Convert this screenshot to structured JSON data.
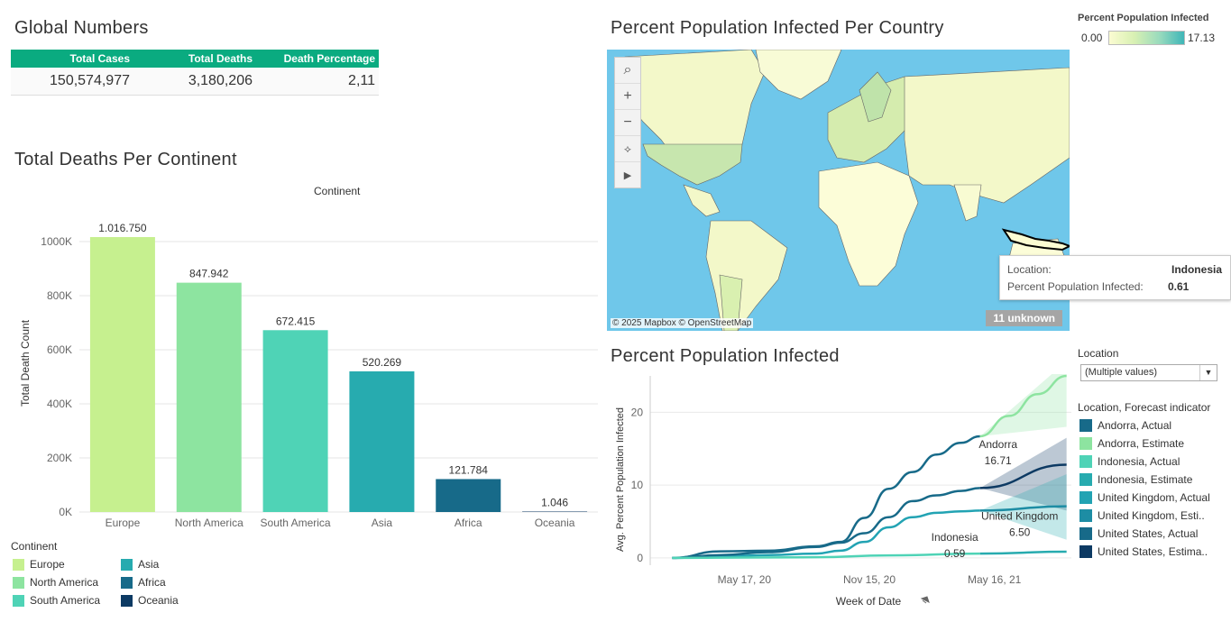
{
  "global_numbers": {
    "title": "Global Numbers",
    "headers": [
      "Total Cases",
      "Total Deaths",
      "Death Percentage"
    ],
    "values": [
      "150,574,977",
      "3,180,206",
      "2,11"
    ]
  },
  "deaths_chart": {
    "title": "Total Deaths Per Continent",
    "header": "Continent",
    "legend_title": "Continent",
    "legend": [
      {
        "label": "Europe",
        "color": "#c6f08f"
      },
      {
        "label": "North America",
        "color": "#8de4a0"
      },
      {
        "label": "South America",
        "color": "#4fd3b6"
      },
      {
        "label": "Asia",
        "color": "#27abaf"
      },
      {
        "label": "Africa",
        "color": "#176a89"
      },
      {
        "label": "Oceania",
        "color": "#0d3a63"
      }
    ]
  },
  "map": {
    "title": "Percent Population Infected Per Country",
    "legend_title": "Percent Population Infected",
    "legend_min": "0.00",
    "legend_max": "17.13",
    "credit": "© 2025 Mapbox © OpenStreetMap",
    "unknown": "11 unknown",
    "tools": [
      "search-icon",
      "zoom-in-icon",
      "zoom-out-icon",
      "pin-clear-icon",
      "play-icon"
    ],
    "tooltip": {
      "location_label": "Location:",
      "location_value": "Indonesia",
      "metric_label": "Percent Population Infected:",
      "metric_value": "0.61"
    }
  },
  "infected_chart": {
    "title": "Percent Population Infected",
    "location_label": "Location",
    "location_filter": "(Multiple values)",
    "legend_title": "Location, Forecast indicator",
    "legend": [
      {
        "label": "Andorra, Actual",
        "color": "#176a89"
      },
      {
        "label": "Andorra, Estimate",
        "color": "#8de4a0"
      },
      {
        "label": "Indonesia, Actual",
        "color": "#4fd3b6"
      },
      {
        "label": "Indonesia, Estimate",
        "color": "#27abaf"
      },
      {
        "label": "United Kingdom, Actual",
        "color": "#22a3b3"
      },
      {
        "label": "United Kingdom, Esti..",
        "color": "#1d8da4"
      },
      {
        "label": "United States, Actual",
        "color": "#176a89"
      },
      {
        "label": "United States, Estima..",
        "color": "#0d3a63"
      }
    ],
    "annotations": [
      {
        "name": "Andorra",
        "value": "16.71"
      },
      {
        "name": "Indonesia",
        "value": "0.59"
      },
      {
        "name": "United Kingdom",
        "value": "6.50"
      }
    ]
  },
  "chart_data": [
    {
      "type": "bar",
      "title": "Total Deaths Per Continent",
      "xlabel": "",
      "ylabel": "Total Death Count",
      "categories": [
        "Europe",
        "North America",
        "South America",
        "Asia",
        "Africa",
        "Oceania"
      ],
      "values": [
        1016750,
        847942,
        672415,
        520269,
        121784,
        1046
      ],
      "value_labels": [
        "1.016.750",
        "847.942",
        "672.415",
        "520.269",
        "121.784",
        "1.046"
      ],
      "colors": [
        "#c6f08f",
        "#8de4a0",
        "#4fd3b6",
        "#27abaf",
        "#176a89",
        "#0d3a63"
      ],
      "ylim": [
        0,
        1100000
      ],
      "yticks": [
        0,
        200000,
        400000,
        600000,
        800000,
        1000000
      ],
      "ytick_labels": [
        "0K",
        "200K",
        "400K",
        "600K",
        "800K",
        "1000K"
      ],
      "grid": true
    },
    {
      "type": "line",
      "title": "Percent Population Infected",
      "xlabel": "Week of Date",
      "ylabel": "Avg. Percent Population Infected",
      "x_ticks": [
        "May 17, 20",
        "Nov 15, 20",
        "May 16, 21"
      ],
      "yticks": [
        0,
        10,
        20
      ],
      "ylim": [
        -1,
        25
      ],
      "series": [
        {
          "name": "Andorra, Actual",
          "color": "#176a89",
          "x": [
            "Feb 2, 20",
            "Apr 12, 20",
            "Jun 21, 20",
            "Aug 30, 20",
            "Oct 4, 20",
            "Nov 8, 20",
            "Dec 13, 20",
            "Jan 17, 21",
            "Feb 21, 21",
            "Mar 28, 21",
            "Apr 25, 21"
          ],
          "y": [
            0,
            0.9,
            1.0,
            1.6,
            2.2,
            5.5,
            9.5,
            11.8,
            14.2,
            15.8,
            16.71
          ]
        },
        {
          "name": "Andorra, Estimate",
          "color": "#8de4a0",
          "x": [
            "Apr 25, 21",
            "Jun 6, 21",
            "Jul 18, 21",
            "Aug 29, 21"
          ],
          "y": [
            16.71,
            19.5,
            22.5,
            25
          ]
        },
        {
          "name": "United Kingdom, Actual",
          "color": "#22a3b3",
          "x": [
            "Feb 2, 20",
            "Apr 12, 20",
            "Jun 21, 20",
            "Aug 30, 20",
            "Oct 4, 20",
            "Nov 8, 20",
            "Dec 13, 20",
            "Jan 17, 21",
            "Feb 21, 21",
            "Mar 28, 21",
            "Apr 25, 21"
          ],
          "y": [
            0,
            0.2,
            0.4,
            0.6,
            1.0,
            2.2,
            4.2,
            5.6,
            6.2,
            6.4,
            6.5
          ]
        },
        {
          "name": "United Kingdom, Esti..",
          "color": "#1d8da4",
          "x": [
            "Apr 25, 21",
            "Aug 29, 21"
          ],
          "y": [
            6.5,
            7.1
          ]
        },
        {
          "name": "United States, Actual",
          "color": "#176a89",
          "x": [
            "Feb 2, 20",
            "Apr 12, 20",
            "Jun 21, 20",
            "Aug 30, 20",
            "Oct 4, 20",
            "Nov 8, 20",
            "Dec 13, 20",
            "Jan 17, 21",
            "Feb 21, 21",
            "Mar 28, 21",
            "Apr 25, 21"
          ],
          "y": [
            0,
            0.4,
            0.8,
            1.5,
            2.1,
            3.4,
            5.6,
            7.8,
            8.6,
            9.2,
            9.6
          ]
        },
        {
          "name": "United States, Estima..",
          "color": "#0d3a63",
          "x": [
            "Apr 25, 21",
            "Aug 29, 21"
          ],
          "y": [
            9.6,
            12.8
          ]
        },
        {
          "name": "Indonesia, Actual",
          "color": "#4fd3b6",
          "x": [
            "Feb 2, 20",
            "Aug 30, 20",
            "Dec 13, 20",
            "Apr 25, 21"
          ],
          "y": [
            0,
            0.1,
            0.35,
            0.59
          ]
        },
        {
          "name": "Indonesia, Estimate",
          "color": "#27abaf",
          "x": [
            "Apr 25, 21",
            "Aug 29, 21"
          ],
          "y": [
            0.59,
            0.85
          ]
        }
      ],
      "grid": true
    }
  ]
}
